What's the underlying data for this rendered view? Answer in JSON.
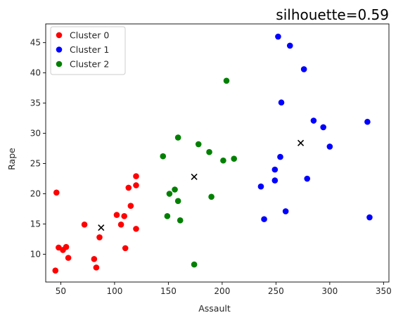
{
  "chart_data": {
    "type": "scatter",
    "title": "silhouette=0.59",
    "xlabel": "Assault",
    "ylabel": "Rape",
    "xlim": [
      36,
      355
    ],
    "ylim": [
      5.4,
      48.1
    ],
    "xticks": [
      50,
      100,
      150,
      200,
      250,
      300,
      350
    ],
    "yticks": [
      10,
      15,
      20,
      25,
      30,
      35,
      40,
      45
    ],
    "grid": false,
    "legend_position": "top-left",
    "series": [
      {
        "name": "Cluster 0",
        "color": "#ff0000",
        "points": [
          [
            46,
            20.2
          ],
          [
            48,
            11.1
          ],
          [
            52,
            10.7
          ],
          [
            55,
            11.2
          ],
          [
            57,
            9.4
          ],
          [
            45,
            7.3
          ],
          [
            72,
            14.9
          ],
          [
            81,
            9.2
          ],
          [
            83,
            7.8
          ],
          [
            86,
            12.8
          ],
          [
            102,
            16.5
          ],
          [
            106,
            14.9
          ],
          [
            109,
            16.3
          ],
          [
            110,
            11.0
          ],
          [
            113,
            21.0
          ],
          [
            115,
            18.0
          ],
          [
            120,
            22.9
          ],
          [
            120,
            21.4
          ],
          [
            120,
            14.2
          ]
        ]
      },
      {
        "name": "Cluster 1",
        "color": "#0000ff",
        "points": [
          [
            252,
            46.0
          ],
          [
            263,
            44.5
          ],
          [
            276,
            40.6
          ],
          [
            255,
            35.1
          ],
          [
            285,
            32.1
          ],
          [
            294,
            31.0
          ],
          [
            335,
            31.9
          ],
          [
            300,
            27.8
          ],
          [
            254,
            26.1
          ],
          [
            249,
            24.0
          ],
          [
            249,
            22.2
          ],
          [
            279,
            22.5
          ],
          [
            236,
            21.2
          ],
          [
            239,
            15.8
          ],
          [
            259,
            17.1
          ],
          [
            337,
            16.1
          ]
        ]
      },
      {
        "name": "Cluster 2",
        "color": "#008000",
        "points": [
          [
            204,
            38.7
          ],
          [
            159,
            29.3
          ],
          [
            178,
            28.2
          ],
          [
            145,
            26.2
          ],
          [
            188,
            26.9
          ],
          [
            201,
            25.5
          ],
          [
            211,
            25.8
          ],
          [
            156,
            20.7
          ],
          [
            151,
            20.0
          ],
          [
            159,
            18.8
          ],
          [
            190,
            19.5
          ],
          [
            149,
            16.3
          ],
          [
            161,
            15.6
          ],
          [
            174,
            8.3
          ]
        ]
      }
    ],
    "centroids": [
      [
        87.5,
        14.4
      ],
      [
        174,
        22.8
      ],
      [
        273,
        28.4
      ]
    ]
  }
}
